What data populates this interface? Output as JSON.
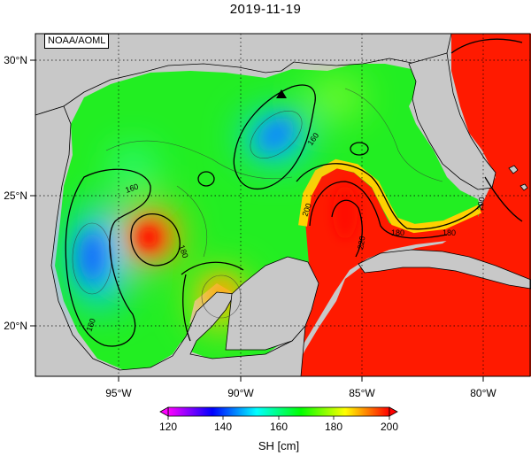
{
  "title": "2019-11-19",
  "credit": "NOAA/AOML",
  "map": {
    "region": "Gulf of Mexico",
    "variable": "sea surface height",
    "lon_range": [
      -98,
      -78
    ],
    "lat_range": [
      18,
      31
    ],
    "lon_ticks": [
      "95°W",
      "90°W",
      "85°W",
      "80°W"
    ],
    "lat_ticks": [
      "30°N",
      "25°N",
      "20°N"
    ],
    "gridlines": "dotted",
    "land_color": "#c8c8c8",
    "contour_labels": [
      "160",
      "160",
      "160",
      "180",
      "180",
      "200",
      "220",
      "180",
      "200"
    ],
    "features": [
      {
        "type": "high",
        "name": "loop-current",
        "value_cm": 220
      },
      {
        "type": "high",
        "name": "warm-eddy",
        "value_cm": 190
      },
      {
        "type": "low",
        "name": "northern-cold-eddy",
        "value_cm": 145
      },
      {
        "type": "low",
        "name": "western-cold-eddy",
        "value_cm": 145
      }
    ],
    "marker": "triangle-icon"
  },
  "colorbar": {
    "ticks": [
      "120",
      "140",
      "160",
      "180",
      "200"
    ],
    "min": 120,
    "max": 200,
    "unit_label": "SH [cm]",
    "colors": [
      "#ff00ff",
      "#0000ff",
      "#00ffff",
      "#00ff00",
      "#ffff00",
      "#ff0000"
    ]
  }
}
